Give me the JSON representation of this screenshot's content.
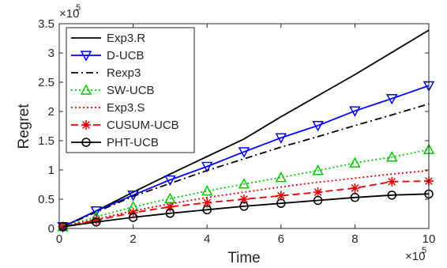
{
  "chart_data": {
    "type": "line",
    "xlabel": "Time",
    "ylabel": "Regret",
    "x_multiplier_label": "×10",
    "x_multiplier_exp": "5",
    "y_multiplier_label": "×10",
    "y_multiplier_exp": "5",
    "xlim": [
      0,
      10
    ],
    "ylim": [
      0,
      3.5
    ],
    "xticks": [
      0,
      2,
      4,
      6,
      8,
      10
    ],
    "xtick_labels": [
      "0",
      "2",
      "4",
      "6",
      "8",
      "10"
    ],
    "yticks": [
      0,
      0.5,
      1,
      1.5,
      2,
      2.5,
      3,
      3.5
    ],
    "ytick_labels": [
      "0",
      "0.5",
      "1",
      "1.5",
      "2",
      "2.5",
      "3",
      "3.5"
    ],
    "grid": false,
    "legend_position": "top-left",
    "series": [
      {
        "name": "Exp3.R",
        "color": "#000000",
        "style": "solid",
        "marker": "none",
        "x": [
          0.1,
          1,
          2,
          3,
          4,
          5,
          6,
          7,
          8,
          9,
          10
        ],
        "y": [
          0.03,
          0.3,
          0.62,
          0.93,
          1.23,
          1.53,
          1.91,
          2.27,
          2.63,
          3.01,
          3.39
        ]
      },
      {
        "name": "D-UCB",
        "color": "#0000ff",
        "style": "solid",
        "marker": "triangle-down",
        "x": [
          0.1,
          1,
          2,
          3,
          4,
          5,
          6,
          7,
          8,
          9,
          10
        ],
        "y": [
          0.03,
          0.3,
          0.57,
          0.83,
          1.06,
          1.31,
          1.55,
          1.76,
          2.01,
          2.22,
          2.44
        ]
      },
      {
        "name": "Rexp3",
        "color": "#000000",
        "style": "dashdot",
        "marker": "none",
        "x": [
          0.1,
          1,
          2,
          3,
          4,
          5,
          6,
          7,
          8,
          9,
          10
        ],
        "y": [
          0.03,
          0.28,
          0.55,
          0.77,
          0.99,
          1.19,
          1.39,
          1.57,
          1.76,
          1.94,
          2.13
        ]
      },
      {
        "name": "SW-UCB",
        "color": "#00c800",
        "style": "dotted",
        "marker": "triangle-up",
        "x": [
          0.1,
          1,
          2,
          3,
          4,
          5,
          6,
          7,
          8,
          9,
          10
        ],
        "y": [
          0.03,
          0.2,
          0.37,
          0.51,
          0.64,
          0.76,
          0.87,
          0.99,
          1.12,
          1.22,
          1.35
        ]
      },
      {
        "name": "Exp3.S",
        "color": "#e60000",
        "style": "dotted",
        "marker": "none",
        "x": [
          0.1,
          1,
          2,
          3,
          4,
          5,
          6,
          7,
          8,
          9,
          10
        ],
        "y": [
          0.03,
          0.16,
          0.3,
          0.42,
          0.53,
          0.62,
          0.71,
          0.79,
          0.86,
          0.93,
          0.99
        ]
      },
      {
        "name": "CUSUM-UCB",
        "color": "#e60000",
        "style": "dashed",
        "marker": "asterisk",
        "x": [
          0.1,
          1,
          2,
          3,
          4,
          5,
          6,
          7,
          8,
          9,
          10
        ],
        "y": [
          0.03,
          0.14,
          0.27,
          0.37,
          0.44,
          0.5,
          0.56,
          0.62,
          0.69,
          0.8,
          0.81
        ]
      },
      {
        "name": "PHT-UCB",
        "color": "#000000",
        "style": "solid",
        "marker": "circle",
        "x": [
          0.1,
          1,
          2,
          3,
          4,
          5,
          6,
          7,
          8,
          9,
          10
        ],
        "y": [
          0.03,
          0.11,
          0.19,
          0.26,
          0.32,
          0.38,
          0.43,
          0.48,
          0.53,
          0.57,
          0.59
        ]
      }
    ]
  }
}
